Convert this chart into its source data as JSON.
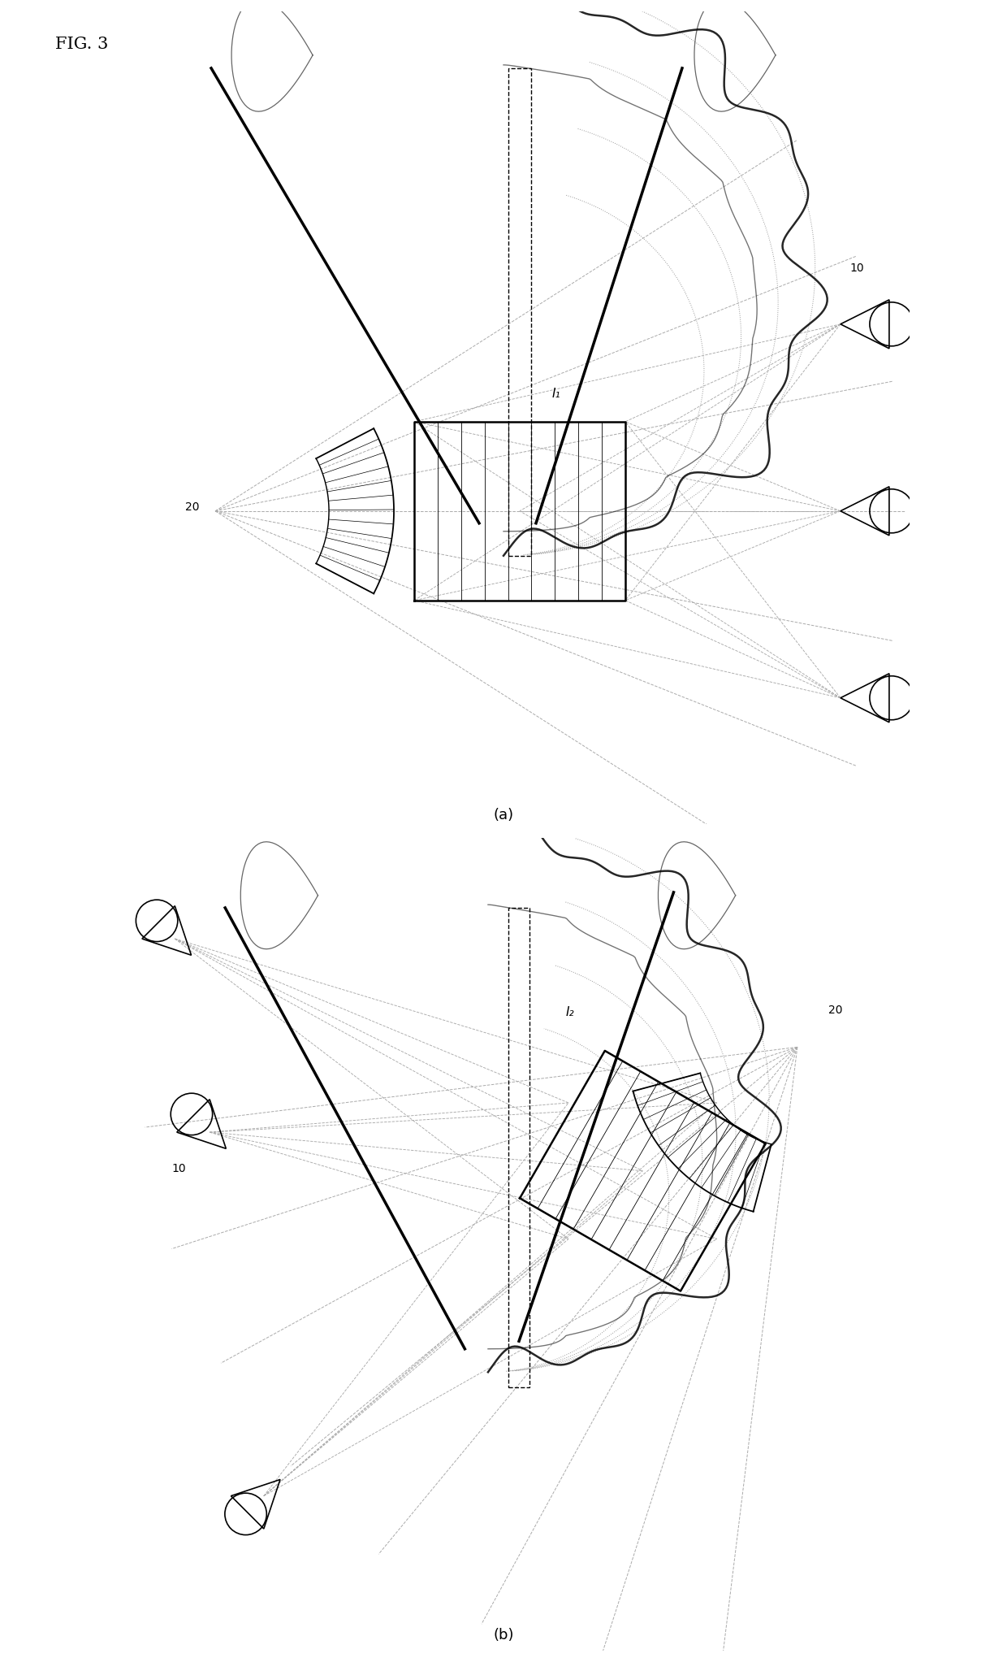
{
  "fig_label": "FIG. 3",
  "label_a": "(a)",
  "label_b": "(b)",
  "label_10": "10",
  "label_20": "20",
  "label_I1": "I₁",
  "label_I2": "I₂",
  "bg_color": "#ffffff"
}
